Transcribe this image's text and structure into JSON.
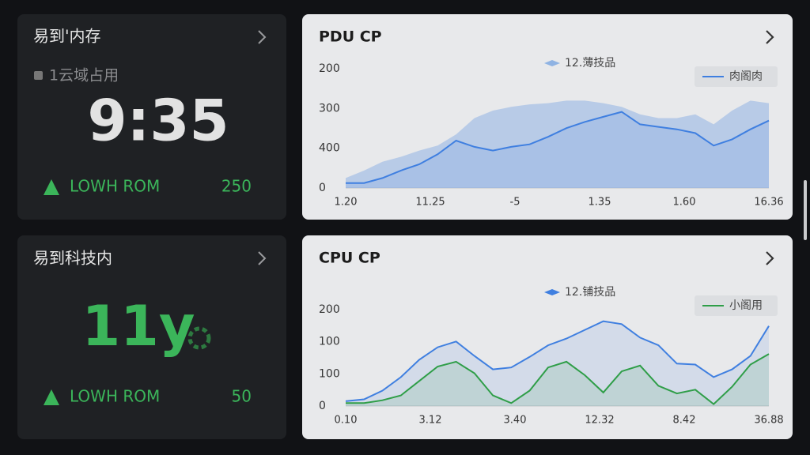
{
  "cards": [
    {
      "title": "易到'内存",
      "subtitle": "1云域占用",
      "value": "9:35",
      "status": "LOWH ROM",
      "count": "250"
    },
    {
      "title": "易到科技内",
      "value": "11y",
      "status": "LOWH ROM",
      "count": "50"
    }
  ],
  "chart_data": [
    {
      "type": "line",
      "title": "PDU CP",
      "y_labels": [
        "200",
        "300",
        "400",
        "0"
      ],
      "x_labels": [
        "1.20",
        "11.25",
        "-5",
        "1.35",
        "1.60",
        "16.36"
      ],
      "ylim": [
        0,
        100
      ],
      "series": [
        {
          "name": "12.薄技品",
          "color": "#8fb3e3",
          "kind": "area",
          "values": [
            8,
            14,
            21,
            25,
            30,
            34,
            43,
            56,
            62,
            65,
            67,
            68,
            70,
            70,
            68,
            65,
            59,
            56,
            56,
            59,
            51,
            62,
            70,
            68
          ]
        },
        {
          "name": "肉阁肉",
          "color": "#3f7fe0",
          "kind": "line",
          "values": [
            4,
            4,
            8,
            14,
            19,
            27,
            38,
            33,
            30,
            33,
            35,
            41,
            48,
            53,
            57,
            61,
            51,
            49,
            47,
            44,
            34,
            39,
            47,
            54
          ]
        }
      ]
    },
    {
      "type": "line",
      "title": "CPU CP",
      "y_labels": [
        "200",
        "100",
        "100",
        "0"
      ],
      "x_labels": [
        "0.10",
        "3.12",
        "3.40",
        "12.32",
        "8.42",
        "36.88"
      ],
      "ylim": [
        0,
        100
      ],
      "series": [
        {
          "name": "12.铺技品",
          "color": "#3f7fe0",
          "kind": "line",
          "values": [
            5,
            7,
            16,
            30,
            48,
            61,
            67,
            52,
            38,
            40,
            51,
            63,
            70,
            79,
            88,
            85,
            71,
            63,
            44,
            43,
            30,
            38,
            52,
            83
          ]
        },
        {
          "name": "小阁用",
          "color": "#2f9e48",
          "kind": "line",
          "values": [
            3,
            3,
            6,
            11,
            26,
            41,
            46,
            34,
            11,
            3,
            16,
            40,
            46,
            32,
            14,
            36,
            42,
            21,
            13,
            17,
            2,
            20,
            43,
            54
          ]
        }
      ]
    }
  ]
}
